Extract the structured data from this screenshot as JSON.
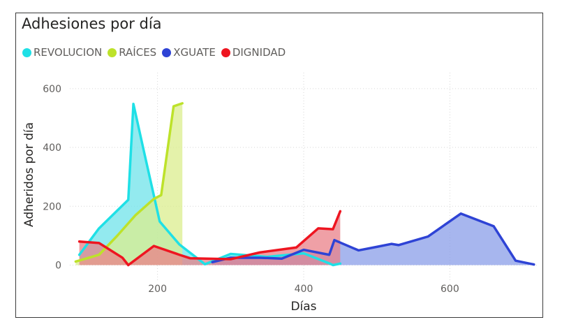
{
  "chart_data": {
    "type": "area",
    "title": "Adhesiones por día",
    "xlabel": "Días",
    "ylabel": "Adheridos por día",
    "xlim": [
      80,
      720
    ],
    "ylim": [
      -120,
      640
    ],
    "x_ticks": [
      200,
      400,
      600
    ],
    "y_ticks": [
      0,
      200,
      400,
      600
    ],
    "x_tick_labels": [
      "200",
      "400",
      "600"
    ],
    "y_tick_labels": [
      "0",
      "200",
      "400",
      "600"
    ],
    "grid": true,
    "legend_position": "top-left",
    "series": [
      {
        "name": "REVOLUCION",
        "color": "#1fe0e6",
        "fill": "#6fe3e9",
        "points": [
          [
            93,
            35
          ],
          [
            120,
            125
          ],
          [
            160,
            222
          ],
          [
            167,
            548
          ],
          [
            182,
            380
          ],
          [
            203,
            148
          ],
          [
            230,
            70
          ],
          [
            255,
            22
          ],
          [
            265,
            3
          ],
          [
            300,
            38
          ],
          [
            350,
            28
          ],
          [
            400,
            40
          ],
          [
            435,
            6
          ],
          [
            440,
            0
          ],
          [
            450,
            5
          ]
        ]
      },
      {
        "name": "RAÍCES",
        "color": "#bde22a",
        "fill": "#dbee8d",
        "points": [
          [
            88,
            12
          ],
          [
            120,
            35
          ],
          [
            145,
            100
          ],
          [
            170,
            170
          ],
          [
            195,
            225
          ],
          [
            205,
            238
          ],
          [
            222,
            540
          ],
          [
            234,
            550
          ]
        ]
      },
      {
        "name": "XGUATE",
        "color": "#2e43d5",
        "fill": "#8a9de8",
        "points": [
          [
            275,
            10
          ],
          [
            300,
            25
          ],
          [
            340,
            25
          ],
          [
            370,
            22
          ],
          [
            400,
            52
          ],
          [
            435,
            35
          ],
          [
            442,
            85
          ],
          [
            475,
            50
          ],
          [
            500,
            62
          ],
          [
            520,
            72
          ],
          [
            530,
            68
          ],
          [
            570,
            97
          ],
          [
            615,
            175
          ],
          [
            660,
            132
          ],
          [
            690,
            15
          ],
          [
            715,
            2
          ]
        ]
      },
      {
        "name": "DIGNIDAD",
        "color": "#ee1520",
        "fill": "#e98088",
        "points": [
          [
            93,
            80
          ],
          [
            120,
            75
          ],
          [
            152,
            25
          ],
          [
            160,
            0
          ],
          [
            195,
            65
          ],
          [
            230,
            35
          ],
          [
            245,
            23
          ],
          [
            300,
            20
          ],
          [
            340,
            43
          ],
          [
            390,
            60
          ],
          [
            420,
            125
          ],
          [
            440,
            122
          ],
          [
            450,
            183
          ]
        ]
      }
    ]
  }
}
